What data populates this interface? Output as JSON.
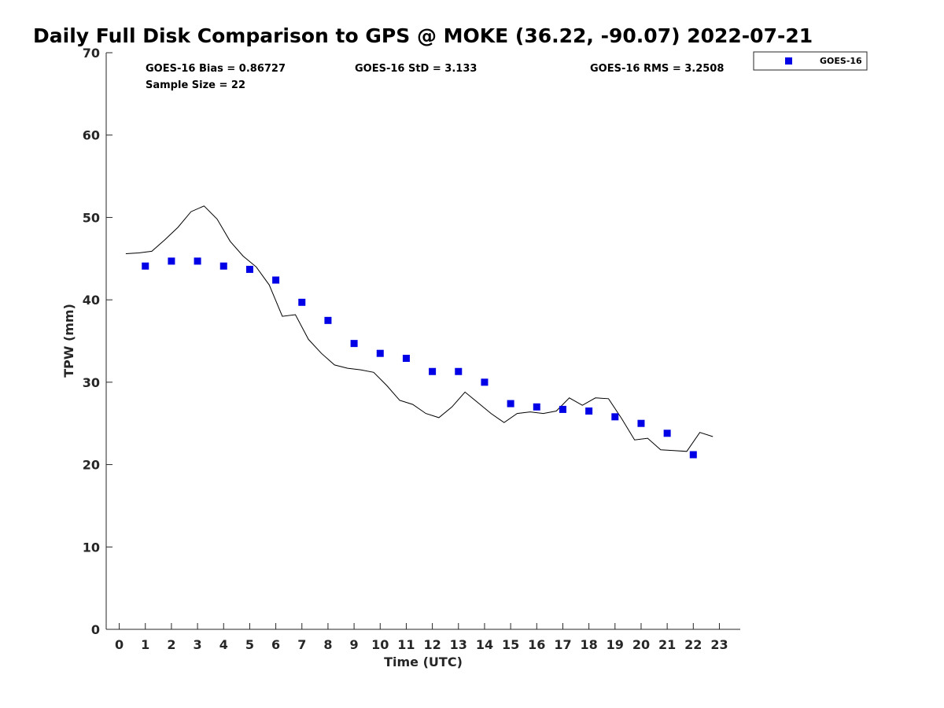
{
  "chart_data": {
    "type": "scatter",
    "title": "Daily Full Disk Comparison to GPS @ MOKE (36.22, -90.07) 2022-07-21",
    "xlabel": "Time (UTC)",
    "ylabel": "TPW (mm)",
    "xlim": [
      -0.5,
      23.8
    ],
    "ylim": [
      0,
      70
    ],
    "x_ticks": [
      0,
      1,
      2,
      3,
      4,
      5,
      6,
      7,
      8,
      9,
      10,
      11,
      12,
      13,
      14,
      15,
      16,
      17,
      18,
      19,
      20,
      21,
      22,
      23
    ],
    "y_ticks": [
      0,
      10,
      20,
      30,
      40,
      50,
      60,
      70
    ],
    "legend": {
      "position": "top-right-outside",
      "entries": [
        "GOES-16"
      ]
    },
    "stats": {
      "bias": "GOES-16 Bias = 0.86727",
      "std": "GOES-16 StD = 3.133",
      "rms": "GOES-16 RMS = 3.2508",
      "sample": "Sample Size = 22"
    },
    "series": [
      {
        "name": "GOES-16",
        "kind": "scatter",
        "color": "#0000e6",
        "x": [
          1,
          2,
          3,
          4,
          5,
          6,
          7,
          8,
          9,
          10,
          11,
          12,
          13,
          14,
          15,
          16,
          17,
          18,
          19,
          20,
          21,
          22
        ],
        "y": [
          44.1,
          44.7,
          44.7,
          44.1,
          43.7,
          42.4,
          39.7,
          37.5,
          34.7,
          33.5,
          32.9,
          31.3,
          31.3,
          30.0,
          27.4,
          27.0,
          26.7,
          26.5,
          25.8,
          25.0,
          23.8,
          21.2
        ]
      },
      {
        "kind": "line",
        "color": "#000000",
        "x": [
          0.25,
          0.75,
          1.25,
          1.75,
          2.25,
          2.75,
          3.25,
          3.75,
          4.25,
          4.75,
          5.25,
          5.75,
          6.25,
          6.75,
          7.25,
          7.75,
          8.25,
          8.75,
          9.25,
          9.75,
          10.25,
          10.75,
          11.25,
          11.75,
          12.25,
          12.75,
          13.25,
          13.75,
          14.25,
          14.75,
          15.25,
          15.75,
          16.25,
          16.75,
          17.25,
          17.75,
          18.25,
          18.75,
          19.25,
          19.75,
          20.25,
          20.75,
          21.25,
          21.75,
          22.25,
          22.75
        ],
        "y": [
          45.6,
          45.7,
          45.9,
          47.3,
          48.8,
          50.7,
          51.4,
          49.8,
          47.1,
          45.3,
          44.0,
          41.8,
          38.0,
          38.2,
          35.2,
          33.5,
          32.1,
          31.7,
          31.5,
          31.2,
          29.6,
          27.8,
          27.3,
          26.2,
          25.7,
          27.0,
          28.8,
          27.5,
          26.2,
          25.1,
          26.2,
          26.4,
          26.2,
          26.5,
          28.1,
          27.2,
          28.1,
          28.0,
          25.6,
          23.0,
          23.2,
          21.8,
          21.7,
          21.6,
          23.9,
          23.4
        ]
      }
    ]
  }
}
